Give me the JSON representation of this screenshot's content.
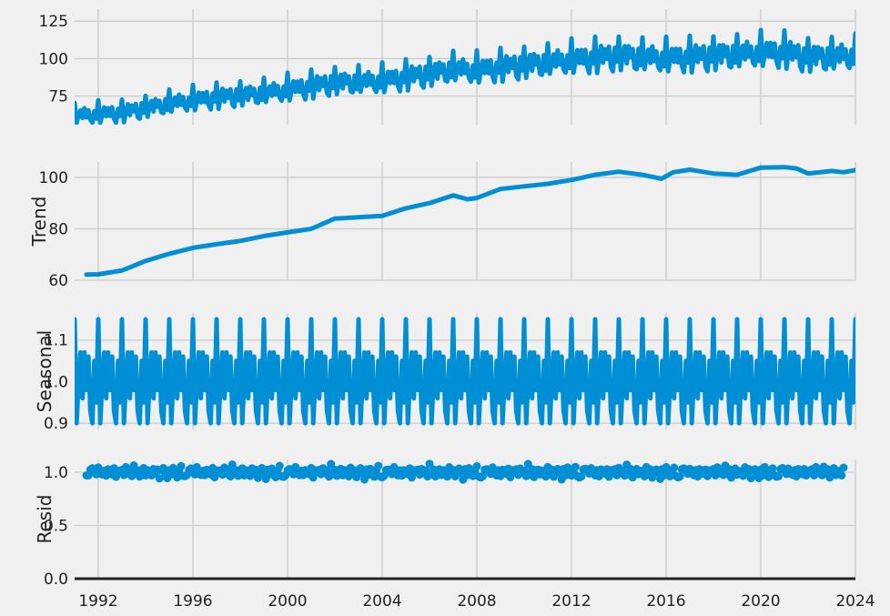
{
  "chart_data": {
    "type": "line",
    "style": "seasonal-decomposition, fivethirtyeight",
    "line_color": "#008fd5",
    "background": "#f0f0f0",
    "grid": true,
    "shared_x_axis": {
      "ticks": [
        1992,
        1996,
        2000,
        2004,
        2008,
        2012,
        2016,
        2020,
        2024
      ],
      "tick_labels": [
        "1992",
        "1996",
        "2000",
        "2004",
        "2008",
        "2012",
        "2016",
        "2020",
        "2024"
      ],
      "xlim": [
        1991.0,
        2024.0
      ]
    },
    "panels": [
      {
        "name": "observed",
        "ylabel": "",
        "ylim": [
          56,
          133
        ],
        "yticks": [
          75,
          100,
          125
        ],
        "ytick_labels": [
          "75",
          "100",
          "125"
        ],
        "series_kind": "line",
        "monthly_start": 1991.0,
        "monthly_end": 2024.0,
        "trend_knots": [
          [
            1991.0,
            62
          ],
          [
            1993.0,
            64
          ],
          [
            1995.0,
            70
          ],
          [
            1997.0,
            74
          ],
          [
            1999.0,
            77
          ],
          [
            2000.0,
            79
          ],
          [
            2002.0,
            84
          ],
          [
            2004.0,
            85
          ],
          [
            2006.0,
            90
          ],
          [
            2007.0,
            93
          ],
          [
            2008.0,
            92
          ],
          [
            2010.0,
            96
          ],
          [
            2012.0,
            99
          ],
          [
            2014.0,
            102
          ],
          [
            2016.0,
            100
          ],
          [
            2018.0,
            102
          ],
          [
            2020.0,
            104
          ],
          [
            2021.0,
            104
          ],
          [
            2022.0,
            101
          ],
          [
            2024.0,
            102
          ]
        ],
        "seasonal_factors": [
          1.15,
          0.9,
          1.0,
          1.07,
          0.96,
          1.07,
          0.98,
          1.06,
          0.93,
          0.9,
          1.05,
          0.95
        ]
      },
      {
        "name": "trend",
        "ylabel": "Trend",
        "ylim": [
          60,
          106
        ],
        "yticks": [
          60,
          80,
          100
        ],
        "ytick_labels": [
          "60",
          "80",
          "100"
        ],
        "series_kind": "line",
        "points": [
          [
            1991.5,
            62.2
          ],
          [
            1992.0,
            62.3
          ],
          [
            1993.0,
            63.8
          ],
          [
            1994.0,
            67.5
          ],
          [
            1995.0,
            70.3
          ],
          [
            1996.0,
            72.6
          ],
          [
            1997.0,
            74.0
          ],
          [
            1998.0,
            75.3
          ],
          [
            1999.0,
            77.2
          ],
          [
            2000.0,
            78.6
          ],
          [
            2001.0,
            80.0
          ],
          [
            2002.0,
            84.0
          ],
          [
            2003.0,
            84.5
          ],
          [
            2004.0,
            85.0
          ],
          [
            2005.0,
            88.0
          ],
          [
            2006.0,
            90.0
          ],
          [
            2007.0,
            93.0
          ],
          [
            2007.6,
            91.5
          ],
          [
            2008.0,
            92.0
          ],
          [
            2009.0,
            95.5
          ],
          [
            2010.0,
            96.5
          ],
          [
            2011.0,
            97.5
          ],
          [
            2012.0,
            99.0
          ],
          [
            2013.0,
            101.0
          ],
          [
            2014.0,
            102.2
          ],
          [
            2015.0,
            101.0
          ],
          [
            2015.8,
            99.5
          ],
          [
            2016.3,
            102.0
          ],
          [
            2017.0,
            103.0
          ],
          [
            2018.0,
            101.5
          ],
          [
            2019.0,
            101.0
          ],
          [
            2020.0,
            103.8
          ],
          [
            2021.0,
            104.0
          ],
          [
            2021.5,
            103.5
          ],
          [
            2022.0,
            101.5
          ],
          [
            2023.0,
            102.5
          ],
          [
            2023.5,
            102.0
          ],
          [
            2024.0,
            102.8
          ]
        ]
      },
      {
        "name": "seasonal",
        "ylabel": "Seasonal",
        "ylim": [
          0.885,
          1.165
        ],
        "yticks": [
          0.9,
          1.0,
          1.1
        ],
        "ytick_labels": [
          "0.9",
          "1.0",
          "1.1"
        ],
        "series_kind": "line",
        "monthly_start": 1991.0,
        "monthly_end": 2024.0,
        "seasonal_factors": [
          1.15,
          0.9,
          1.0,
          1.07,
          0.96,
          1.07,
          0.98,
          1.06,
          0.93,
          0.9,
          1.05,
          0.95
        ]
      },
      {
        "name": "resid",
        "ylabel": "Resid",
        "ylim": [
          0.0,
          1.12
        ],
        "yticks": [
          0.0,
          0.5,
          1.0
        ],
        "ytick_labels": [
          "0.0",
          "0.5",
          "1.0"
        ],
        "series_kind": "scatter",
        "baseline": 0.0,
        "monthly_start": 1991.5,
        "monthly_end": 2023.5,
        "base_value": 1.0,
        "deviations": [
          -0.05,
          -0.04,
          0.03,
          0.04,
          0.02,
          -0.02,
          0.05,
          0.01,
          -0.03,
          0.02,
          -0.04,
          0.03,
          0.01,
          -0.02,
          0.04,
          -0.05,
          0.02,
          0.0,
          0.03,
          -0.03,
          0.05,
          -0.01,
          0.02,
          -0.04,
          0.08,
          -0.02,
          0.03,
          -0.05,
          0.01,
          0.04,
          -0.03,
          0.02,
          0.0,
          -0.04,
          0.05,
          -0.02,
          0.03,
          -0.06,
          0.02,
          0.04,
          -0.01,
          -0.07,
          0.03,
          -0.03,
          0.05,
          0.01,
          -0.05,
          0.02,
          0.06,
          -0.04
        ]
      }
    ]
  }
}
